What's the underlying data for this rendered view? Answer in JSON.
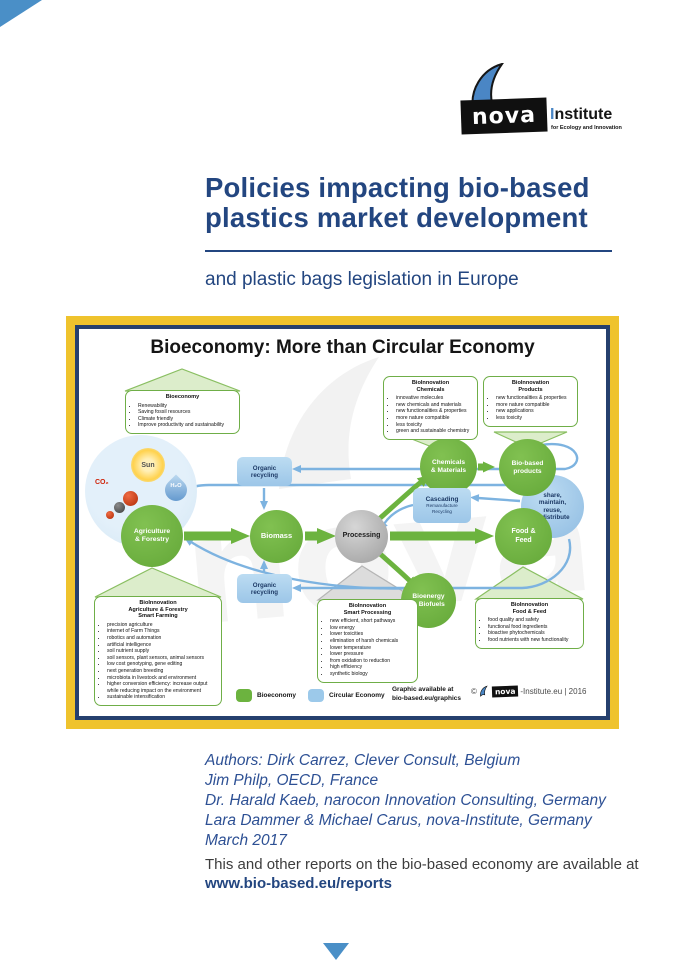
{
  "page": {
    "logo": {
      "brand": "nova",
      "institute_initial": "I",
      "institute_rest": "nstitute",
      "tagline": "for Ecology and Innovation"
    },
    "title": {
      "line1": "Policies impacting bio-based",
      "line2": "plastics market development"
    },
    "subtitle": "and plastic bags legislation in Europe",
    "authors": [
      "Authors: Dirk Carrez, Clever Consult, Belgium",
      "Jim Philp, OECD, France",
      "Dr. Harald Kaeb, narocon Innovation Consulting, Germany",
      "Lara Dammer & Michael Carus, nova-Institute, Germany",
      "March 2017"
    ],
    "footer": {
      "text": "This and other reports on the bio-based economy are available at",
      "link": "www.bio-based.eu/reports"
    }
  },
  "diagram": {
    "title": "Bioeconomy: More than Circular Economy",
    "watermark": "nova",
    "inputs": {
      "sun": "Sun",
      "h2o": "H₂O",
      "co2": "CO₂"
    },
    "nodes": {
      "agriculture": [
        "Agriculture",
        "& Forestry"
      ],
      "biomass": [
        "Biomass"
      ],
      "processing": [
        "Processing"
      ],
      "chemicals_materials": [
        "Chemicals",
        "& Materials"
      ],
      "biobased_products": [
        "Bio-based",
        "products"
      ],
      "food_feed": [
        "Food &",
        "Feed"
      ],
      "bioenergy_biofuels": [
        "Bioenergy",
        "& Biofuels"
      ],
      "share_circle": [
        "share,",
        "maintain,",
        "reuse,",
        "redistribute"
      ],
      "organic_recycling": [
        "Organic",
        "recycling"
      ],
      "cascading": {
        "title": "Cascading",
        "sub": [
          "Remanufacture",
          "Recycling"
        ]
      }
    },
    "boxes": {
      "bioeconomy": {
        "title": [
          "Bioeconomy"
        ],
        "bullets": [
          "Renewability",
          "Saving fossil resources",
          "Climate friendly",
          "Improve productivity and sustainability"
        ]
      },
      "chemicals": {
        "title": [
          "BioInnovation",
          "Chemicals"
        ],
        "bullets": [
          "innovative molecules",
          "new chemicals and materials",
          "new functionalities & properties",
          "more nature compatible",
          "less toxicity",
          "green and sustainable chemistry"
        ]
      },
      "products": {
        "title": [
          "BioInnovation",
          "Products"
        ],
        "bullets": [
          "new functionalities & properties",
          "more nature compatible",
          "new applications",
          "less toxicity"
        ]
      },
      "smart_farming": {
        "title": [
          "BioInnovation",
          "Agriculture & Forestry",
          "Smart Farming"
        ],
        "bullets": [
          "precision agriculture",
          "internet of Farm Things",
          "robotics and automation",
          "artificial intelligence",
          "soil nutrient supply",
          "soil sensors, plant sensors, animal sensors",
          "low cost genotyping, gene editing",
          "next generation breeding",
          "microbiota in livestock and environment",
          "higher conversion efficiency: increase output while reducing impact on the environment",
          "sustainable intensification"
        ]
      },
      "smart_processing": {
        "title": [
          "BioInnovation",
          "Smart Processing"
        ],
        "bullets": [
          "new efficient, short pathways",
          "low energy",
          "lower toxicities",
          "elimination of harsh chemicals",
          "lower temperature",
          "lower pressure",
          "from oxidation to reduction",
          "high efficiency",
          "synthetic biology"
        ]
      },
      "food_feed": {
        "title": [
          "BioInnovation",
          "Food & Feed"
        ],
        "bullets": [
          "food quality and safety",
          "functional food ingredients",
          "bioactive phytochemicals",
          "food nutrients with new functionality"
        ]
      }
    },
    "legend": {
      "bioeconomy": "Bioeconomy",
      "circular_economy": "Circular Economy",
      "graphic_note": [
        "Graphic available at",
        "bio-based.eu/graphics"
      ],
      "copyright": {
        "prefix": "©",
        "brand": "nova",
        "suffix": "-Institute.eu | 2016"
      }
    },
    "colors": {
      "navy": "#234680",
      "yellow": "#efc32d",
      "frame_navy": "#25406e",
      "green": "#6cb33f",
      "light_green": "#dcedcb",
      "blue_arrow": "#7db3e0",
      "light_blue": "#a9d2ee",
      "gray_node": "#a8a8a8",
      "accent_blue": "#4a8fc7"
    }
  }
}
